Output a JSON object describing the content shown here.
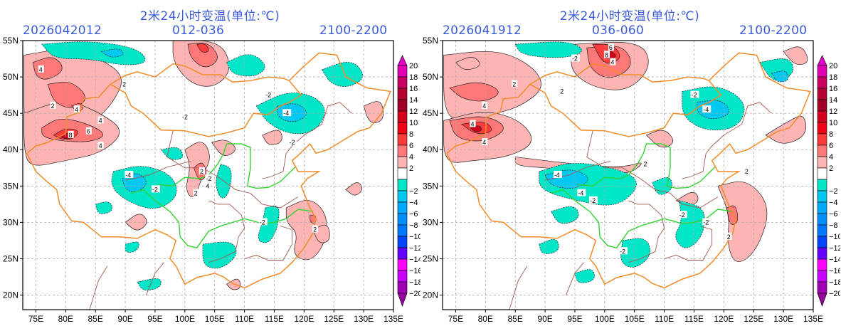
{
  "panels": [
    {
      "title": "2米24小时变温(单位:℃)",
      "init_time": "2026042012",
      "forecast_range": "012-036",
      "valid_hours": "2100-2200",
      "contour_labels": [
        "4",
        "4",
        "4",
        "2",
        "8",
        "6",
        "4",
        "2",
        "-2",
        "-4",
        "-2",
        "-2",
        "-4",
        "-2",
        "2",
        "2",
        "4",
        "-2",
        "2",
        "-2"
      ]
    },
    {
      "title": "2米24小时变温(单位:℃)",
      "init_time": "2026041912",
      "forecast_range": "036-060",
      "valid_hours": "2100-2200",
      "contour_labels": [
        "6",
        "4",
        "8",
        "4",
        "4",
        "2",
        "-2",
        "-4",
        "-2",
        "-4",
        "-2",
        "-2",
        "-4",
        "2",
        "2",
        "-2",
        "2",
        "-2",
        "2",
        "4"
      ]
    }
  ],
  "axes": {
    "lon_ticks": [
      "75E",
      "80E",
      "85E",
      "90E",
      "95E",
      "100E",
      "105E",
      "110E",
      "115E",
      "120E",
      "125E",
      "130E",
      "135E"
    ],
    "lat_ticks": [
      "55N",
      "50N",
      "45N",
      "40N",
      "35N",
      "30N",
      "25N",
      "20N"
    ],
    "lon_range": [
      72.8,
      135
    ],
    "lat_range": [
      18,
      55
    ]
  },
  "colorbar": {
    "labels": [
      "20",
      "18",
      "16",
      "14",
      "12",
      "10",
      "8",
      "6",
      "4",
      "2",
      "-2",
      "-4",
      "-6",
      "-8",
      "-10",
      "-12",
      "-14",
      "-16",
      "-18",
      "-20"
    ],
    "colors": [
      "#e100b4",
      "#c8005f",
      "#b40032",
      "#a00028",
      "#d2001e",
      "#f00014",
      "#ff3c3c",
      "#ff7878",
      "#ffb4b4",
      "#ffffff",
      "#00e6c8",
      "#00c8f0",
      "#00aaff",
      "#0090ff",
      "#0078ff",
      "#0046ff",
      "#6400ff",
      "#ff00ff",
      "#c800ff",
      "#a000b4"
    ],
    "top_arrow_color": "#e100c8",
    "bottom_arrow_color": "#96009b"
  },
  "style_colors": {
    "warm_light": "#f4a0a0",
    "warm_mid": "#f07070",
    "warm_dark": "#d82030",
    "cool_light": "#3ce6c8",
    "cool_mid": "#28b4f0",
    "border_orange": "#f08c28",
    "border_green": "#32d232",
    "province_brown": "#a05a50",
    "title_blue": "#3a5bd9"
  }
}
